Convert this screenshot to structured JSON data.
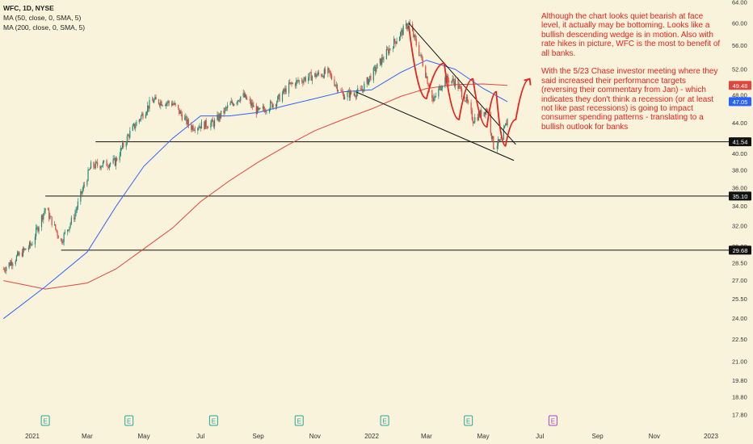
{
  "legend": {
    "title": "WFC, 1D, NYSE",
    "ma50": "MA (50, close, 0, SMA, 5)",
    "ma200": "MA (200, close, 0, SMA, 5)"
  },
  "annotation": "Although the chart looks quiet bearish at face level, it actually may be bottoming. Looks like a bullish descending wedge is in motion. Also with rate hikes in picture, WFC is the most to benefit of all banks.\n\nWith the 5/23 Chase investor meeting where they said increased their performance targets (reversing their commentary from Jan) - which indicates they don't think a recession (or at least not like past recessions) is going to impact consumer spending patterns - translating to a bullish outlook for banks",
  "colors": {
    "background": "#faf3dc",
    "candle_up": "#1f8a78",
    "candle_down": "#e0463e",
    "ma50": "#2962ff",
    "ma200": "#e0463e",
    "annotation": "#e8221c",
    "earnings": "#26a69a",
    "earnings_future": "#ab47bc"
  },
  "chart_data": {
    "type": "candlestick",
    "title": "WFC, 1D, NYSE",
    "y_scale": "log",
    "ylim": [
      17.8,
      64.0
    ],
    "y_ticks": [
      "64.00",
      "60.00",
      "56.00",
      "52.00",
      "48.00",
      "44.00",
      "40.00",
      "38.00",
      "36.00",
      "34.00",
      "32.00",
      "30.00",
      "28.50",
      "27.00",
      "25.50",
      "24.00",
      "22.50",
      "21.00",
      "19.80",
      "18.80",
      "17.80"
    ],
    "x_ticks": [
      "2021",
      "Mar",
      "May",
      "Jul",
      "Sep",
      "Nov",
      "2022",
      "Mar",
      "May",
      "Jul",
      "Sep",
      "Nov",
      "2023"
    ],
    "x_tick_dates": [
      "2021-01-01",
      "2021-03-01",
      "2021-05-01",
      "2021-07-01",
      "2021-09-01",
      "2021-11-01",
      "2022-01-01",
      "2022-03-01",
      "2022-05-01",
      "2022-07-01",
      "2022-09-01",
      "2022-11-01",
      "2023-01-01"
    ],
    "price_path": [
      [
        "2020-12-01",
        28.0
      ],
      [
        "2020-12-31",
        30.2
      ],
      [
        "2021-01-15",
        33.8
      ],
      [
        "2021-02-01",
        30.5
      ],
      [
        "2021-02-15",
        33.0
      ],
      [
        "2021-03-05",
        38.5
      ],
      [
        "2021-03-31",
        39.0
      ],
      [
        "2021-04-15",
        42.5
      ],
      [
        "2021-05-10",
        47.2
      ],
      [
        "2021-06-01",
        46.8
      ],
      [
        "2021-06-20",
        43.5
      ],
      [
        "2021-07-15",
        44.0
      ],
      [
        "2021-08-01",
        46.5
      ],
      [
        "2021-08-15",
        48.0
      ],
      [
        "2021-09-01",
        45.5
      ],
      [
        "2021-09-20",
        47.0
      ],
      [
        "2021-10-05",
        49.5
      ],
      [
        "2021-10-25",
        50.8
      ],
      [
        "2021-11-15",
        51.5
      ],
      [
        "2021-12-01",
        48.0
      ],
      [
        "2021-12-20",
        48.5
      ],
      [
        "2022-01-05",
        52.0
      ],
      [
        "2022-01-25",
        56.5
      ],
      [
        "2022-02-10",
        60.0
      ],
      [
        "2022-02-25",
        53.0
      ],
      [
        "2022-03-08",
        47.0
      ],
      [
        "2022-03-20",
        50.5
      ],
      [
        "2022-04-01",
        50.0
      ],
      [
        "2022-04-12",
        47.5
      ],
      [
        "2022-04-20",
        44.5
      ],
      [
        "2022-05-05",
        46.0
      ],
      [
        "2022-05-12",
        41.0
      ],
      [
        "2022-05-20",
        41.5
      ],
      [
        "2022-05-27",
        44.5
      ]
    ],
    "ma50_path": [
      [
        "2020-12-01",
        24.0
      ],
      [
        "2021-01-15",
        26.5
      ],
      [
        "2021-03-01",
        29.5
      ],
      [
        "2021-04-01",
        34.0
      ],
      [
        "2021-05-01",
        38.5
      ],
      [
        "2021-06-01",
        42.0
      ],
      [
        "2021-07-01",
        45.0
      ],
      [
        "2021-08-01",
        45.0
      ],
      [
        "2021-09-01",
        45.5
      ],
      [
        "2021-10-01",
        46.5
      ],
      [
        "2021-11-01",
        47.5
      ],
      [
        "2021-12-01",
        48.5
      ],
      [
        "2022-01-01",
        48.8
      ],
      [
        "2022-02-01",
        51.5
      ],
      [
        "2022-03-01",
        53.5
      ],
      [
        "2022-04-01",
        52.0
      ],
      [
        "2022-05-01",
        49.0
      ],
      [
        "2022-05-27",
        47.05
      ]
    ],
    "ma200_path": [
      [
        "2020-12-01",
        27.0
      ],
      [
        "2021-01-15",
        26.3
      ],
      [
        "2021-03-01",
        26.8
      ],
      [
        "2021-04-01",
        28.0
      ],
      [
        "2021-05-01",
        29.8
      ],
      [
        "2021-06-01",
        31.8
      ],
      [
        "2021-07-01",
        34.5
      ],
      [
        "2021-08-01",
        36.8
      ],
      [
        "2021-09-01",
        39.0
      ],
      [
        "2021-10-01",
        41.0
      ],
      [
        "2021-11-01",
        43.0
      ],
      [
        "2021-12-01",
        44.5
      ],
      [
        "2022-01-01",
        46.0
      ],
      [
        "2022-02-01",
        47.8
      ],
      [
        "2022-03-01",
        49.0
      ],
      [
        "2022-04-01",
        49.6
      ],
      [
        "2022-05-01",
        49.7
      ],
      [
        "2022-05-27",
        49.48
      ]
    ],
    "price_labels": [
      {
        "value": 49.48,
        "text": "49.48",
        "color": "#e0463e"
      },
      {
        "value": 47.05,
        "text": "47.05",
        "color": "#2962ff"
      },
      {
        "value": 41.54,
        "text": "41.54",
        "color": "#111111"
      },
      {
        "value": 35.1,
        "text": "35.10",
        "color": "#111111"
      },
      {
        "value": 29.68,
        "text": "29.68",
        "color": "#111111"
      }
    ],
    "support_lines": [
      {
        "value": 41.54,
        "from": "2021-03-10"
      },
      {
        "value": 35.1,
        "from": "2021-01-15"
      },
      {
        "value": 29.68,
        "from": "2021-02-01"
      }
    ],
    "wedge_lines": [
      {
        "from": [
          "2022-02-10",
          60.0
        ],
        "to": [
          "2022-06-05",
          41.2
        ]
      },
      {
        "from": [
          "2021-12-15",
          48.5
        ],
        "to": [
          "2022-06-03",
          39.2
        ]
      }
    ],
    "projection_path": [
      [
        "2022-02-10",
        59.5
      ],
      [
        "2022-03-01",
        47.5
      ],
      [
        "2022-03-20",
        53.0
      ],
      [
        "2022-04-05",
        44.5
      ],
      [
        "2022-04-20",
        50.5
      ],
      [
        "2022-05-05",
        43.5
      ],
      [
        "2022-05-15",
        48.5
      ],
      [
        "2022-05-25",
        41.0
      ],
      [
        "2022-06-05",
        44.5
      ],
      [
        "2022-06-20",
        50.5
      ]
    ],
    "earnings": [
      {
        "date": "2021-01-15",
        "label": "E",
        "status": "past"
      },
      {
        "date": "2021-04-15",
        "label": "E",
        "status": "past"
      },
      {
        "date": "2021-07-15",
        "label": "E",
        "status": "past"
      },
      {
        "date": "2021-10-15",
        "label": "E",
        "status": "past"
      },
      {
        "date": "2022-01-15",
        "label": "E",
        "status": "past"
      },
      {
        "date": "2022-04-15",
        "label": "E",
        "status": "past"
      },
      {
        "date": "2022-07-15",
        "label": "E",
        "status": "upcoming"
      }
    ]
  }
}
